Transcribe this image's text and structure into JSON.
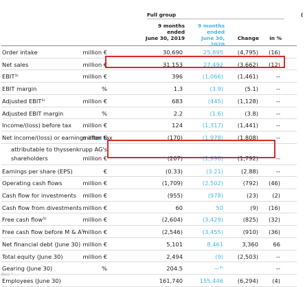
{
  "header": {
    "group": "Full group",
    "cut_glyph": "(",
    "col1": {
      "l1": "9 months",
      "l2": "ended",
      "l3": "June 30, 2019"
    },
    "col2": {
      "l1": "9 months",
      "l2": "ended",
      "l3": "June 30, 2020"
    },
    "col3": "Change",
    "col4": "in %"
  },
  "rows": [
    {
      "label": "Order intake",
      "unit": "million €",
      "v2019": "30,690",
      "v2020": "25,895",
      "change": "(4,795)",
      "pct": "(16)"
    },
    {
      "label": "Net sales",
      "unit": "million €",
      "v2019": "31,153",
      "v2020": "27,492",
      "change": "(3,662)",
      "pct": "(12)"
    },
    {
      "label": "EBIT¹⁾",
      "unit": "million €",
      "v2019": "396",
      "v2020": "(1,066)",
      "change": "(1,461)",
      "pct": "--"
    },
    {
      "label": "EBIT margin",
      "unit": "%",
      "v2019": "1.3",
      "v2020": "(3.9)",
      "change": "(5.1)",
      "pct": "--"
    },
    {
      "label": "Adjusted EBIT¹⁾",
      "unit": "million €",
      "v2019": "683",
      "v2020": "(445)",
      "change": "(1,128)",
      "pct": "--"
    },
    {
      "label": "Adjusted EBIT margin",
      "unit": "%",
      "v2019": "2.2",
      "v2020": "(1.6)",
      "change": "(3.8)",
      "pct": "--"
    },
    {
      "label": "Income/(loss) before tax",
      "unit": "million €",
      "v2019": "124",
      "v2020": "(1,317)",
      "change": "(1,441)",
      "pct": "--"
    },
    {
      "label": "Net income/(loss) or earnings after tax",
      "unit": "million €",
      "v2019": "(170)",
      "v2020": "(1,978)",
      "change": "(1,808)",
      "pct": "--"
    },
    {
      "label": "attributable to thyssenkrupp AG's",
      "label2": "shareholders",
      "unit": "million €",
      "v2019": "(207)",
      "v2020": "(1,998)",
      "change": "(1,792)",
      "pct": "--"
    },
    {
      "label": "Earnings per share (EPS)",
      "unit": "€",
      "v2019": "(0.33)",
      "v2020": "(3.21)",
      "change": "(2.88)",
      "pct": "--"
    },
    {
      "label": "Operating cash flows",
      "unit": "million €",
      "v2019": "(1,709)",
      "v2020": "(2,502)",
      "change": "(792)",
      "pct": "(46)"
    },
    {
      "label": "Cash flow for investments",
      "unit": "million €",
      "v2019": "(955)",
      "v2020": "(978)",
      "change": "(23)",
      "pct": "(2)"
    },
    {
      "label": "Cash flow from divestments",
      "unit": "million €",
      "v2019": "60",
      "v2020": "50",
      "change": "(9)",
      "pct": "(16)"
    },
    {
      "label": "Free cash flow⁵⁾",
      "unit": "million €",
      "v2019": "(2,604)",
      "v2020": "(3,429)",
      "change": "(825)",
      "pct": "(32)"
    },
    {
      "label": "Free cash flow before M & A⁵⁾",
      "unit": "million €",
      "v2019": "(2,546)",
      "v2020": "(3,455)",
      "change": "(910)",
      "pct": "(36)"
    },
    {
      "label": "Net financial debt (June 30)",
      "unit": "million €",
      "v2019": "5,101",
      "v2020": "8,461",
      "change": "3,360",
      "pct": "66"
    },
    {
      "label": "Total equity (June 30)",
      "unit": "million €",
      "v2019": "2,494",
      "v2020": "(9)",
      "change": "(2,503)",
      "pct": "--"
    },
    {
      "label": "Gearing (June 30)",
      "unit": "%",
      "v2019": "204.5",
      "v2020": "—⁴⁾",
      "change": "",
      "pct": "--"
    },
    {
      "label": "Employees (June 30)",
      "unit": "",
      "v2019": "161,740",
      "v2020": "155,446",
      "change": "(6,294)",
      "pct": "(4)"
    }
  ],
  "footer": "ifmii ¹⁾ ..."
}
